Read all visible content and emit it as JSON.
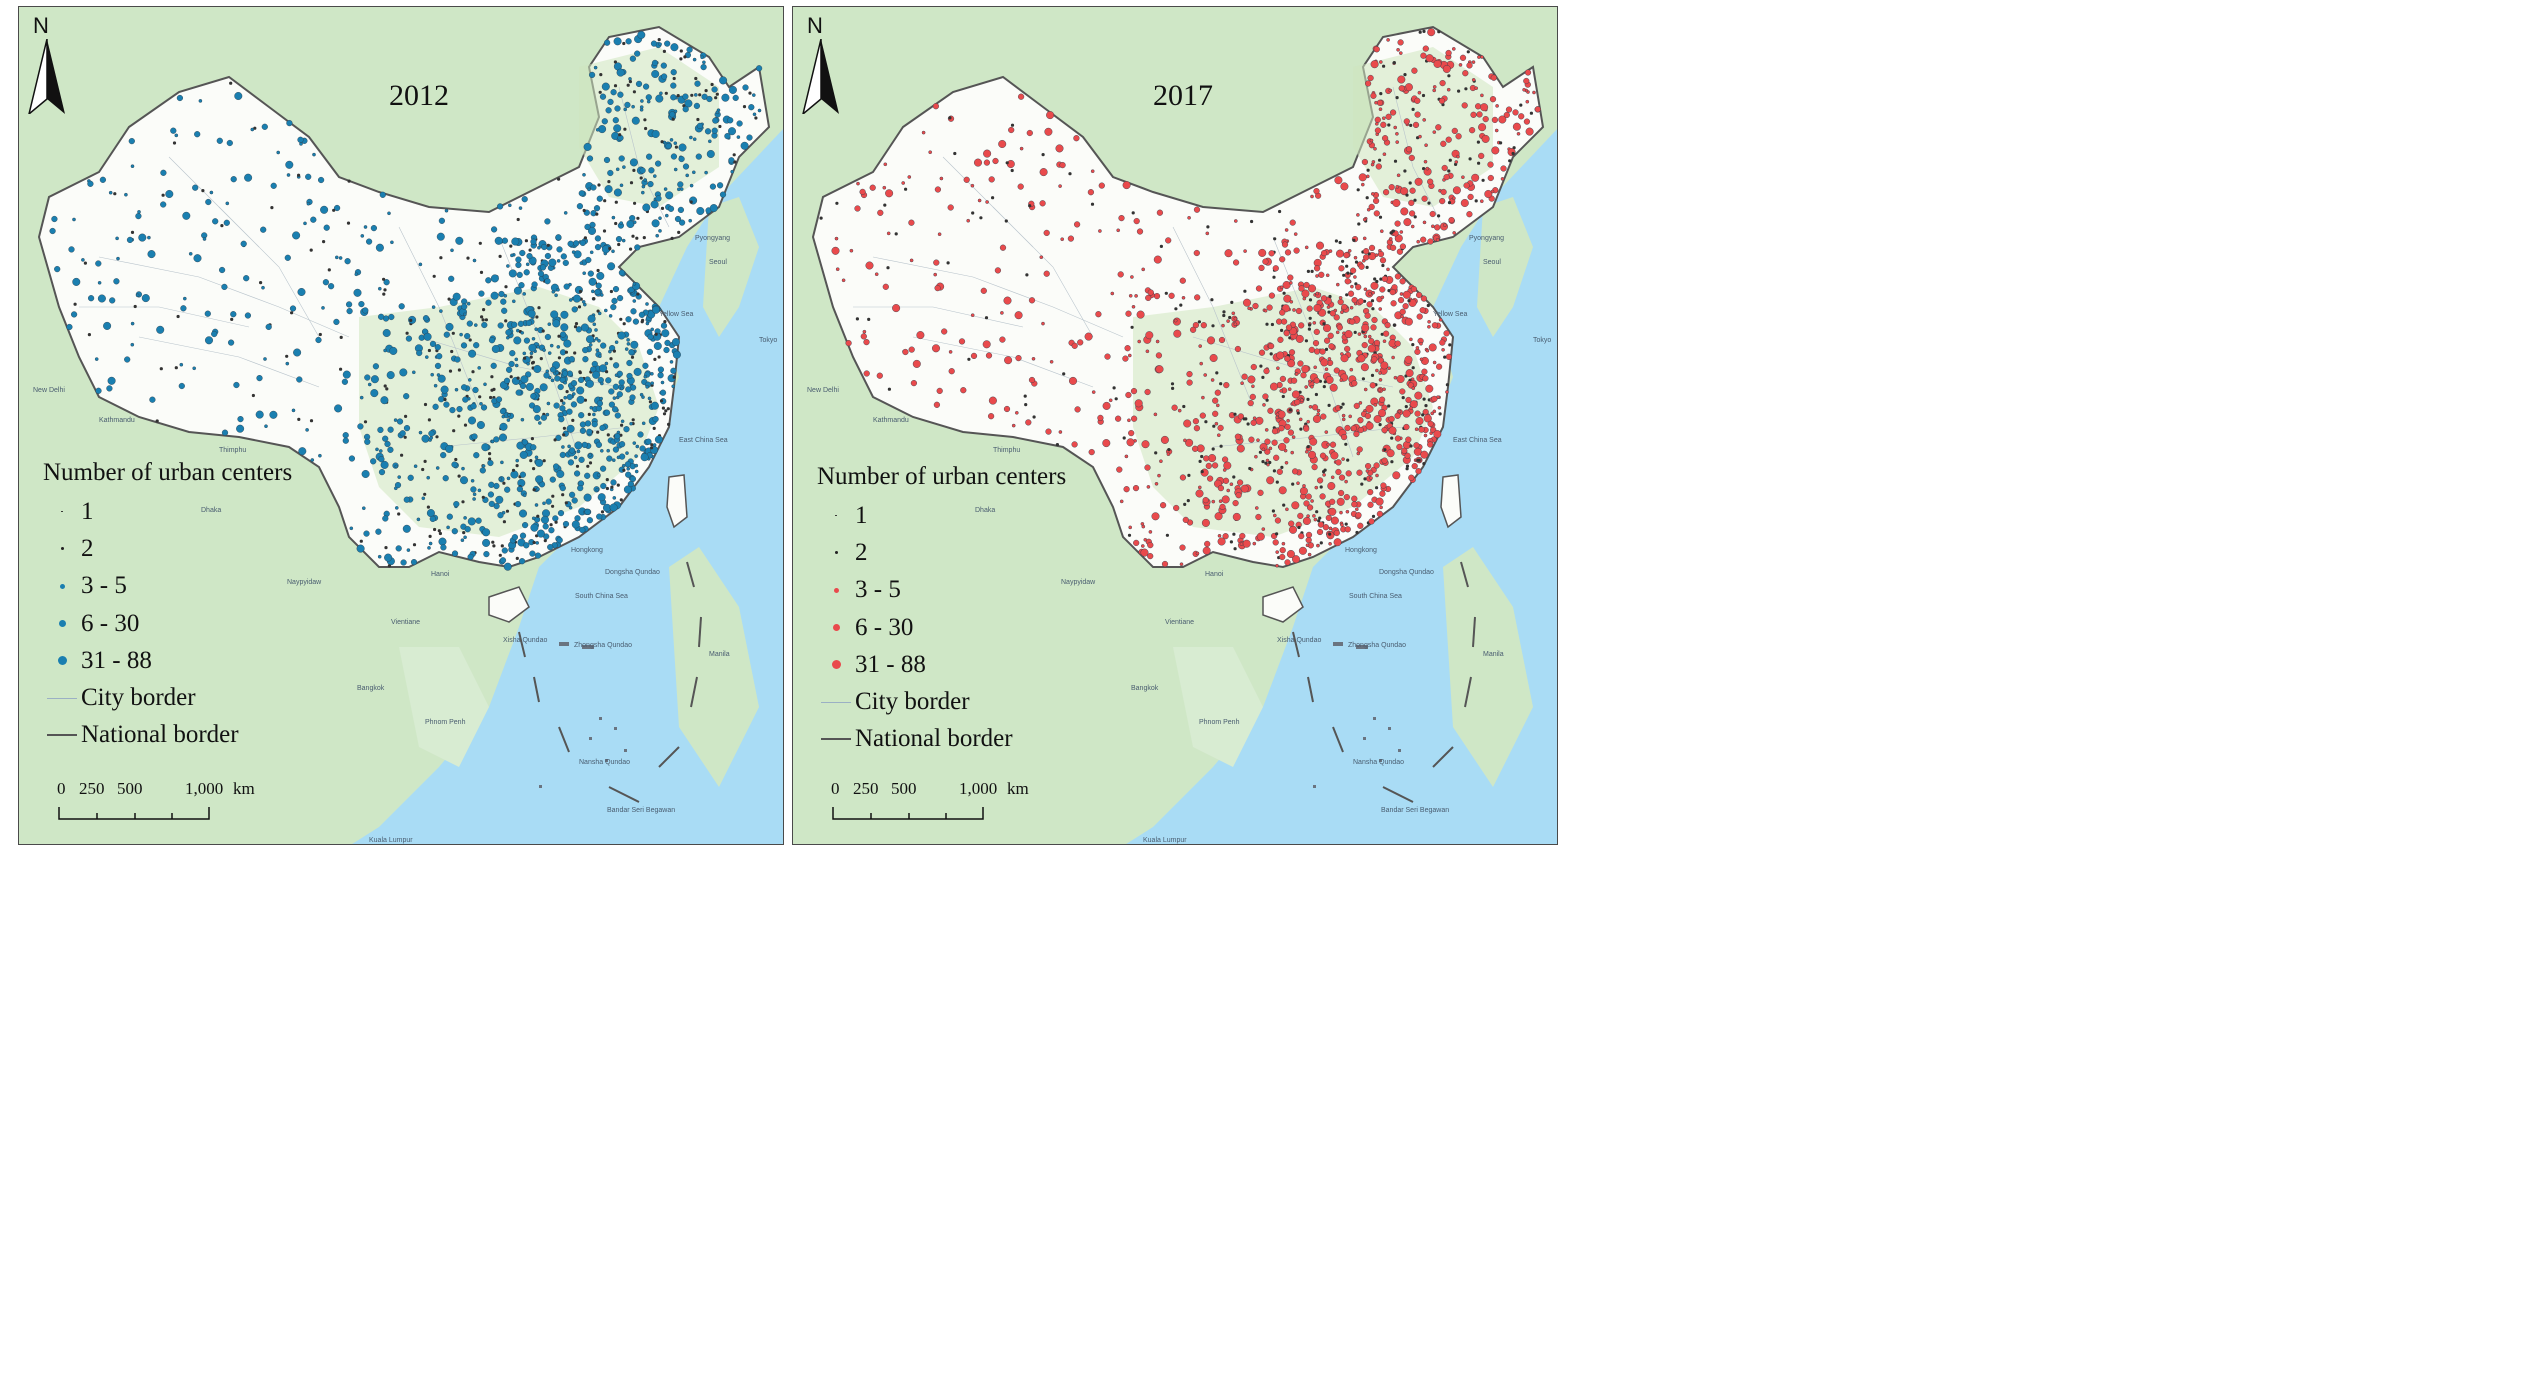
{
  "north_label": "N",
  "colors": {
    "sea": "#a9dcf5",
    "land_outside": "#cfe7c6",
    "china_land": "#fbfcf9",
    "vegetation": "#cfe6c0",
    "city_border": "#b9c4cc",
    "national_border": "#555555",
    "series_2012": "#1a7fb0",
    "series_2017": "#e94a4c"
  },
  "panels": [
    {
      "year": "2012",
      "legend": {
        "title": "Number of urban centers",
        "classes": [
          "1",
          "2",
          "3 - 5",
          "6 - 30",
          "31 - 88"
        ],
        "city_border": "City border",
        "national_border": "National border"
      },
      "scale": {
        "ticks": [
          "0",
          "250",
          "500",
          "1,000"
        ],
        "unit": "km"
      }
    },
    {
      "year": "2017",
      "legend": {
        "title": "Number of urban centers",
        "classes": [
          "1",
          "2",
          "3 - 5",
          "6 - 30",
          "31 - 88"
        ],
        "city_border": "City border",
        "national_border": "National border"
      },
      "scale": {
        "ticks": [
          "0",
          "250",
          "500",
          "1,000"
        ],
        "unit": "km"
      }
    }
  ],
  "place_labels": [
    "Yellow Sea",
    "East China Sea",
    "South China Sea",
    "Xisha Qundao",
    "Zhongsha Qundao",
    "Dongsha Qundao",
    "Nansha Qundao",
    "Hanoi",
    "Vientiane",
    "Bangkok",
    "Phnom Penh",
    "Manila",
    "Hongkong",
    "Bandar Seri Begawan",
    "Kuala Lumpur",
    "New Delhi",
    "Kathmandu",
    "Thimphu",
    "Dhaka",
    "Naypyidaw",
    "Pyongyang",
    "Seoul",
    "Tokyo"
  ]
}
